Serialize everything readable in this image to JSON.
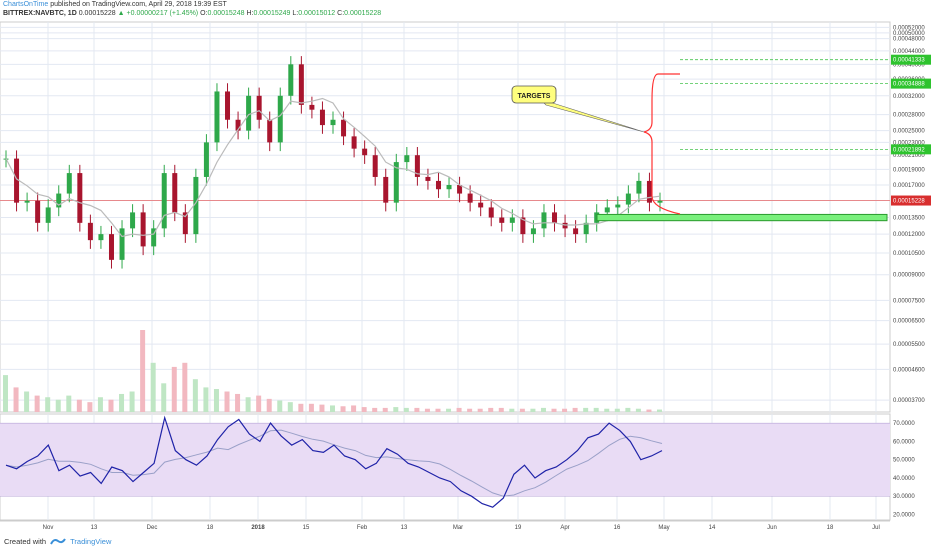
{
  "header": {
    "line1_brand": "ChartsOnTime",
    "line1_rest": "published on TradingView.com, April 29, 2018 19:39 EST",
    "symbol": "BITTREX:NAVBTC, 1D",
    "last": "0.00015228",
    "change": "▲ +0.00000217 (+1.45%)",
    "o_label": "O:",
    "o": "0.00015248",
    "h_label": "H:",
    "h": "0.00015249",
    "l_label": "L:",
    "l": "0.00015012",
    "c_label": "C:",
    "c": "0.00015228"
  },
  "footer": {
    "created": "Created with",
    "brand": "TradingView"
  },
  "chart_data": {
    "type": "candlestick",
    "symbol": "BITTREX:NAVBTC",
    "interval": "1D",
    "colors": {
      "up": "#2ea84a",
      "down": "#a8152e",
      "ma": "#bbbbbb",
      "rsi": "#1f23a8",
      "rsi_signal": "#9aa0c8",
      "band": "#e9dcf5",
      "zone": "#79f07c",
      "target": "#ff3333",
      "callout": "#fffe7e"
    },
    "price_axis": {
      "labels": [
        "0.00052000",
        "0.00050000",
        "0.00048000",
        "0.00044000",
        "0.00040000",
        "0.00036000",
        "0.00032000",
        "0.00028000",
        "0.00025000",
        "0.00023000",
        "0.00021000",
        "0.00019000",
        "0.00017000",
        "0.00015228",
        "0.00013500",
        "0.00012000",
        "0.00010500",
        "0.00009000",
        "0.00007500",
        "0.00006500",
        "0.00005500",
        "0.00004600",
        "0.00003700"
      ],
      "last_price": "0.00015228",
      "scale": "log"
    },
    "x_ticks": [
      "Nov",
      "13",
      "Dec",
      "18",
      "2018",
      "15",
      "Feb",
      "13",
      "Mar",
      "19",
      "Apr",
      "16",
      "May",
      "14",
      "Jun",
      "18",
      "Jul"
    ],
    "price_path": [
      0.000205,
      0.00015,
      0.000152,
      0.00013,
      0.000145,
      0.00016,
      0.000185,
      0.00013,
      0.000115,
      0.00012,
      0.0001,
      0.000125,
      0.00014,
      0.00011,
      0.000125,
      0.000185,
      0.00014,
      0.00012,
      0.00018,
      0.00023,
      0.00033,
      0.00027,
      0.00025,
      0.00032,
      0.00027,
      0.00023,
      0.00032,
      0.0004,
      0.0003,
      0.00029,
      0.00026,
      0.00027,
      0.00024,
      0.00022,
      0.00021,
      0.00018,
      0.00015,
      0.0002,
      0.00021,
      0.00018,
      0.000175,
      0.000165,
      0.00017,
      0.00016,
      0.00015,
      0.000145,
      0.000135,
      0.00013,
      0.000135,
      0.00012,
      0.000125,
      0.00014,
      0.00013,
      0.000125,
      0.00012,
      0.00013,
      0.00014,
      0.000145,
      0.000148,
      0.00016,
      0.000175,
      0.00015,
      0.000152
    ],
    "volume_path": [
      0.45,
      0.3,
      0.25,
      0.2,
      0.18,
      0.15,
      0.2,
      0.15,
      0.12,
      0.18,
      0.15,
      0.22,
      0.25,
      1.0,
      0.6,
      0.35,
      0.55,
      0.6,
      0.4,
      0.3,
      0.28,
      0.25,
      0.22,
      0.18,
      0.2,
      0.16,
      0.14,
      0.12,
      0.1,
      0.1,
      0.09,
      0.08,
      0.07,
      0.08,
      0.06,
      0.05,
      0.05,
      0.06,
      0.05,
      0.05,
      0.04,
      0.04,
      0.04,
      0.05,
      0.04,
      0.04,
      0.05,
      0.05,
      0.04,
      0.04,
      0.04,
      0.05,
      0.04,
      0.04,
      0.05,
      0.05,
      0.05,
      0.04,
      0.04,
      0.05,
      0.04,
      0.03,
      0.03
    ],
    "rsi_axis": {
      "labels": [
        "70.0000",
        "60.0000",
        "50.0000",
        "40.0000",
        "30.0000",
        "20.0000"
      ],
      "overbought": 70,
      "oversold": 30
    },
    "rsi": [
      47,
      45,
      49,
      52,
      58,
      44,
      47,
      41,
      43,
      37,
      46,
      44,
      38,
      43,
      48,
      73,
      55,
      50,
      47,
      52,
      61,
      68,
      72,
      64,
      60,
      70,
      63,
      58,
      61,
      55,
      54,
      58,
      52,
      50,
      45,
      48,
      56,
      53,
      48,
      46,
      43,
      40,
      38,
      33,
      30,
      26,
      24,
      29,
      42,
      47,
      40,
      44,
      46,
      50,
      55,
      62,
      64,
      70,
      66,
      60,
      50,
      52,
      55
    ],
    "annotations": {
      "callout": "TARGETS",
      "target_levels": [
        "0.00041333",
        "0.00034888",
        "0.00021892"
      ],
      "support_zone": [
        0.000132,
        0.000138
      ]
    }
  }
}
